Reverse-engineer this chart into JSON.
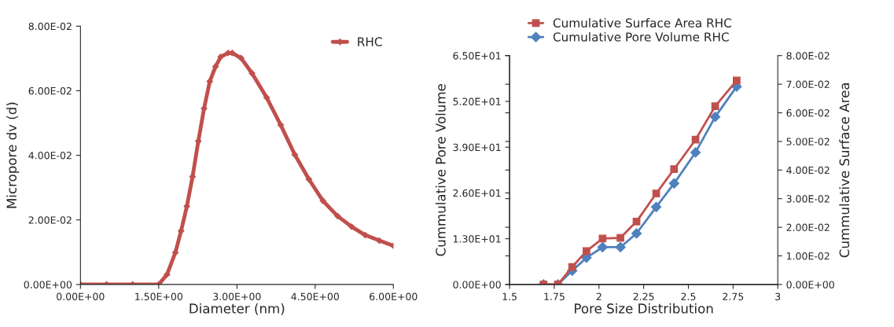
{
  "chart_data": [
    {
      "type": "line",
      "xlabel": "Diameter (nm)",
      "ylabel": "Micropore dv (d)",
      "legend": "top right",
      "grid": false,
      "marker": "diamond",
      "line_style": "solid",
      "xlim": [
        0,
        6
      ],
      "xticks": [
        {
          "value": 0,
          "label": "0.00E+00"
        },
        {
          "value": 1.5,
          "label": "1.50E+00"
        },
        {
          "value": 3,
          "label": "3.00E+00"
        },
        {
          "value": 4.5,
          "label": "4.50E+00"
        },
        {
          "value": 6,
          "label": "6.00E+00"
        }
      ],
      "ylim": [
        0,
        0.08
      ],
      "yticks": [
        {
          "value": 0,
          "label": "0.00E+00"
        },
        {
          "value": 0.02,
          "label": "2.00E-02"
        },
        {
          "value": 0.04,
          "label": "4.00E-02"
        },
        {
          "value": 0.06,
          "label": "6.00E-02"
        },
        {
          "value": 0.08,
          "label": "8.00E-02"
        }
      ],
      "series": [
        {
          "name": "RHC",
          "color": "#c0504d",
          "x": [
            0,
            0.5,
            1.0,
            1.5,
            1.66,
            1.82,
            1.93,
            2.04,
            2.15,
            2.26,
            2.37,
            2.48,
            2.59,
            2.69,
            2.83,
            2.91,
            3.08,
            3.29,
            3.57,
            3.84,
            4.11,
            4.38,
            4.65,
            4.93,
            5.2,
            5.46,
            5.73,
            6.0
          ],
          "values": [
            0,
            0,
            0,
            0,
            0.0031,
            0.0099,
            0.0166,
            0.0242,
            0.0334,
            0.0444,
            0.0545,
            0.0629,
            0.0675,
            0.0705,
            0.0717,
            0.0717,
            0.0701,
            0.0654,
            0.0579,
            0.0494,
            0.0402,
            0.0326,
            0.0259,
            0.0212,
            0.0179,
            0.0153,
            0.0136,
            0.012
          ]
        }
      ]
    },
    {
      "type": "line",
      "xlabel": "Pore Size Distribution",
      "ylabel": "Cummulative Pore Volume",
      "y2label": "Cummulative Surface Area",
      "legend": "top",
      "grid": false,
      "line_style": "solid",
      "xlim": [
        1.5,
        3
      ],
      "xticks": [
        1.5,
        1.75,
        2,
        2.25,
        2.5,
        2.75,
        3
      ],
      "ylim": [
        0,
        65
      ],
      "yticks": [
        {
          "value": 0,
          "label": "0.00E+00"
        },
        {
          "value": 13,
          "label": "1.30E+01"
        },
        {
          "value": 26,
          "label": "2.60E+01"
        },
        {
          "value": 39,
          "label": "3.90E+01"
        },
        {
          "value": 52,
          "label": "5.20E+01"
        },
        {
          "value": 65,
          "label": "6.50E+01"
        }
      ],
      "y2lim": [
        0,
        0.08
      ],
      "y2ticks": [
        {
          "value": 0,
          "label": "0.00E+00"
        },
        {
          "value": 0.01,
          "label": "1.00E-02"
        },
        {
          "value": 0.02,
          "label": "2.00E-02"
        },
        {
          "value": 0.03,
          "label": "3.00E-02"
        },
        {
          "value": 0.04,
          "label": "4.00E-02"
        },
        {
          "value": 0.05,
          "label": "5.00E-02"
        },
        {
          "value": 0.06,
          "label": "6.00E-02"
        },
        {
          "value": 0.07,
          "label": "7.00E-02"
        },
        {
          "value": 0.08,
          "label": "8.00E-02"
        }
      ],
      "x": [
        1.69,
        1.77,
        1.85,
        1.93,
        2.02,
        2.12,
        2.21,
        2.32,
        2.42,
        2.54,
        2.65,
        2.77
      ],
      "series": [
        {
          "name": "Cumulative Surface Area RHC",
          "color": "#c0504d",
          "marker": "square",
          "axis": "y2",
          "values": [
            0,
            0,
            0.0061,
            0.0117,
            0.0161,
            0.0163,
            0.022,
            0.0318,
            0.0403,
            0.0506,
            0.0623,
            0.0713
          ]
        },
        {
          "name": "Cumulative Pore Volume RHC",
          "color": "#4f81bd",
          "marker": "diamond",
          "values": [
            0,
            0,
            3.9,
            7.6,
            10.6,
            10.6,
            14.5,
            22.0,
            28.7,
            37.5,
            47.6,
            56.2
          ]
        }
      ]
    }
  ]
}
